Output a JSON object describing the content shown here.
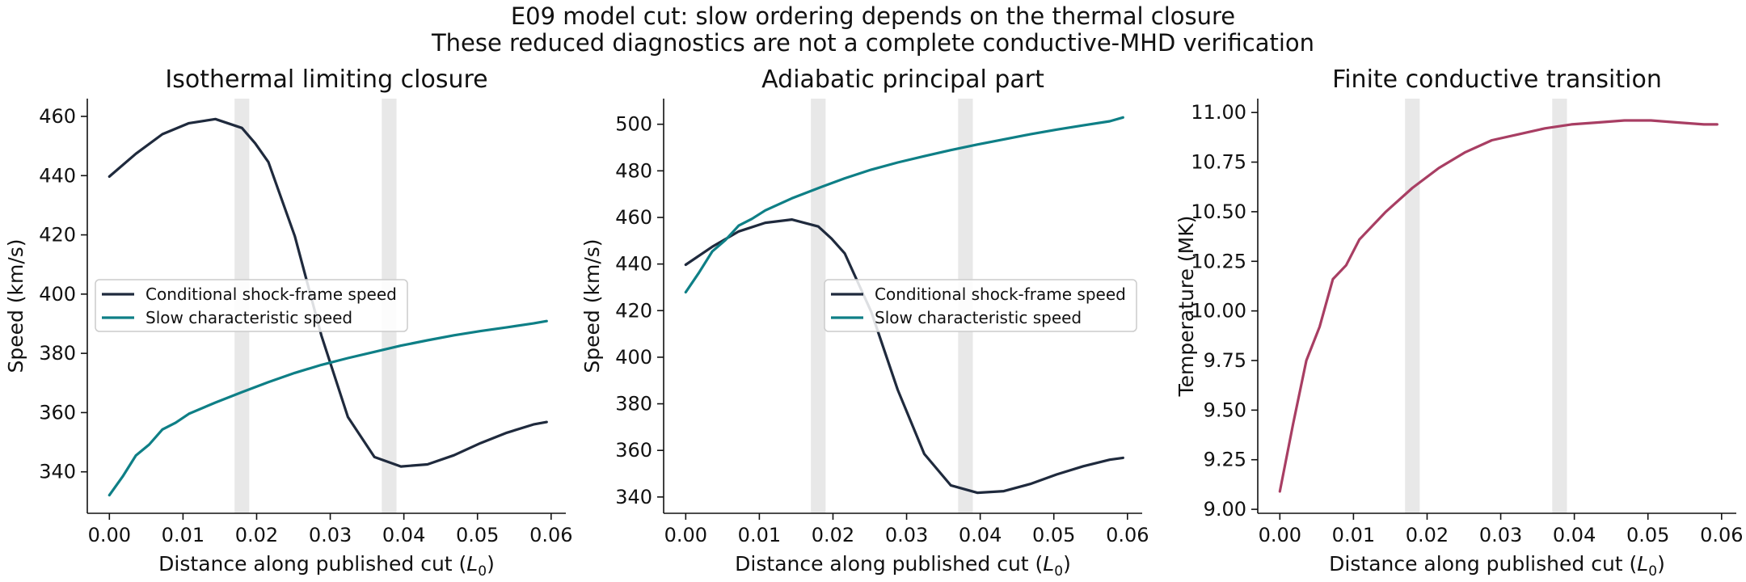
{
  "figure": {
    "title_line1": "E09 model cut: slow ordering depends on the thermal closure",
    "title_line2": "These reduced diagnostics are not a complete conductive-MHD verification"
  },
  "colors": {
    "shock": "#1f2a3d",
    "slow": "#0e7f86",
    "temperature": "#a83e63",
    "band": "#d9d9d9"
  },
  "chart_data": [
    {
      "type": "line",
      "title": "Isothermal limiting closure",
      "xlabel": "Distance along published cut (L0)",
      "ylabel": "Speed (km/s)",
      "xlim": [
        -0.003,
        0.062
      ],
      "ylim": [
        326,
        466
      ],
      "xticks": [
        0.0,
        0.01,
        0.02,
        0.03,
        0.04,
        0.05,
        0.06
      ],
      "xtick_labels": [
        "0.00",
        "0.01",
        "0.02",
        "0.03",
        "0.04",
        "0.05",
        "0.06"
      ],
      "yticks": [
        340,
        360,
        380,
        400,
        420,
        440,
        460
      ],
      "ytick_labels": [
        "340",
        "360",
        "380",
        "400",
        "420",
        "440",
        "460"
      ],
      "shaded_bands": [
        [
          0.017,
          0.019
        ],
        [
          0.037,
          0.039
        ]
      ],
      "legend": "center-left",
      "grid": false,
      "series": [
        {
          "name": "Conditional shock-frame speed",
          "color": "#1f2a3d",
          "x": [
            0.0,
            0.0036,
            0.0072,
            0.0108,
            0.0144,
            0.018,
            0.0198,
            0.0216,
            0.0252,
            0.0288,
            0.0324,
            0.036,
            0.0396,
            0.0432,
            0.0468,
            0.0504,
            0.054,
            0.0576,
            0.0594
          ],
          "y": [
            439.7,
            447.4,
            454.0,
            457.7,
            459.1,
            456.1,
            450.9,
            444.6,
            419.5,
            386.0,
            358.5,
            345.0,
            341.8,
            342.5,
            345.6,
            349.7,
            353.2,
            356.0,
            356.8
          ]
        },
        {
          "name": "Slow characteristic speed",
          "color": "#0e7f86",
          "x": [
            0.0,
            0.0018,
            0.0036,
            0.0054,
            0.0072,
            0.009,
            0.0108,
            0.0144,
            0.018,
            0.0216,
            0.0252,
            0.0288,
            0.0324,
            0.036,
            0.0396,
            0.0432,
            0.0468,
            0.0504,
            0.054,
            0.0576,
            0.0594
          ],
          "y": [
            332.1,
            338.4,
            345.5,
            349.2,
            354.3,
            356.6,
            359.6,
            363.4,
            366.9,
            370.3,
            373.4,
            376.1,
            378.4,
            380.5,
            382.6,
            384.4,
            386.1,
            387.5,
            388.8,
            390.1,
            390.9
          ]
        }
      ]
    },
    {
      "type": "line",
      "title": "Adiabatic principal part",
      "xlabel": "Distance along published cut (L0)",
      "ylabel": "Speed (km/s)",
      "xlim": [
        -0.003,
        0.062
      ],
      "ylim": [
        333,
        511
      ],
      "xticks": [
        0.0,
        0.01,
        0.02,
        0.03,
        0.04,
        0.05,
        0.06
      ],
      "xtick_labels": [
        "0.00",
        "0.01",
        "0.02",
        "0.03",
        "0.04",
        "0.05",
        "0.06"
      ],
      "yticks": [
        340,
        360,
        380,
        400,
        420,
        440,
        460,
        480,
        500
      ],
      "ytick_labels": [
        "340",
        "360",
        "380",
        "400",
        "420",
        "440",
        "460",
        "480",
        "500"
      ],
      "shaded_bands": [
        [
          0.017,
          0.019
        ],
        [
          0.037,
          0.039
        ]
      ],
      "legend": "center-right",
      "grid": false,
      "series": [
        {
          "name": "Conditional shock-frame speed",
          "color": "#1f2a3d",
          "x": [
            0.0,
            0.0036,
            0.0072,
            0.0108,
            0.0144,
            0.018,
            0.0198,
            0.0216,
            0.0252,
            0.0288,
            0.0324,
            0.036,
            0.0396,
            0.0432,
            0.0468,
            0.0504,
            0.054,
            0.0576,
            0.0594
          ],
          "y": [
            439.7,
            447.4,
            454.0,
            457.7,
            459.1,
            456.1,
            450.9,
            444.6,
            419.5,
            386.0,
            358.5,
            345.0,
            341.8,
            342.5,
            345.6,
            349.7,
            353.2,
            356.0,
            356.8
          ]
        },
        {
          "name": "Slow characteristic speed",
          "color": "#0e7f86",
          "x": [
            0.0,
            0.0018,
            0.0036,
            0.0054,
            0.0072,
            0.009,
            0.0108,
            0.0144,
            0.018,
            0.0216,
            0.0252,
            0.0288,
            0.0324,
            0.036,
            0.0396,
            0.0432,
            0.0468,
            0.0504,
            0.054,
            0.0576,
            0.0594
          ],
          "y": [
            427.9,
            436.3,
            445.4,
            450.3,
            456.5,
            459.4,
            463.0,
            468.2,
            472.6,
            476.8,
            480.5,
            483.6,
            486.3,
            488.9,
            491.3,
            493.5,
            495.7,
            497.7,
            499.5,
            501.3,
            502.9
          ]
        }
      ]
    },
    {
      "type": "line",
      "title": "Finite conductive transition",
      "xlabel": "Distance along published cut (L0)",
      "ylabel": "Temperature (MK)",
      "xlim": [
        -0.003,
        0.062
      ],
      "ylim": [
        8.98,
        11.07
      ],
      "xticks": [
        0.0,
        0.01,
        0.02,
        0.03,
        0.04,
        0.05,
        0.06
      ],
      "xtick_labels": [
        "0.00",
        "0.01",
        "0.02",
        "0.03",
        "0.04",
        "0.05",
        "0.06"
      ],
      "yticks": [
        9.0,
        9.25,
        9.5,
        9.75,
        10.0,
        10.25,
        10.5,
        10.75,
        11.0
      ],
      "ytick_labels": [
        "9.00",
        "9.25",
        "9.50",
        "9.75",
        "10.00",
        "10.25",
        "10.50",
        "10.75",
        "11.00"
      ],
      "shaded_bands": [
        [
          0.017,
          0.019
        ],
        [
          0.037,
          0.039
        ]
      ],
      "legend": "none",
      "grid": false,
      "series": [
        {
          "name": "",
          "color": "#a83e63",
          "x": [
            0.0,
            0.0018,
            0.0036,
            0.0054,
            0.0072,
            0.009,
            0.0108,
            0.0144,
            0.018,
            0.0216,
            0.0252,
            0.0288,
            0.0324,
            0.036,
            0.0396,
            0.0432,
            0.0468,
            0.0504,
            0.054,
            0.0576,
            0.0594
          ],
          "y": [
            9.09,
            9.43,
            9.75,
            9.92,
            10.16,
            10.23,
            10.36,
            10.5,
            10.62,
            10.72,
            10.8,
            10.86,
            10.89,
            10.92,
            10.94,
            10.95,
            10.96,
            10.96,
            10.95,
            10.94,
            10.94
          ]
        }
      ]
    }
  ]
}
